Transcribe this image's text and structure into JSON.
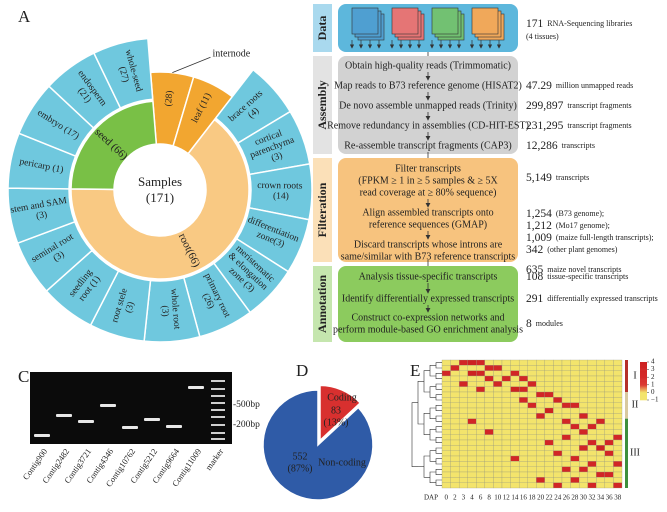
{
  "panel_a": {
    "letter": "A",
    "center_title": "Samples",
    "center_count": "(171)",
    "whole_color": "#f2a630",
    "tissue_color": "#6fc8de",
    "whole": [
      {
        "label": "(28)",
        "callout": "internode"
      },
      {
        "label": "leaf (11)"
      }
    ],
    "groups": [
      {
        "label": "root(66)",
        "color": "#f9c983",
        "tissues": [
          "brace roots (4)",
          "cortical parenchyma (3)",
          "crown roots (14)",
          "differentiation zone(3)",
          "meristematic & elongation zone (3)",
          "primary root (26)",
          "whole root (3)",
          "root stele (3)",
          "seedling root (1)",
          "seminal root (3)",
          "stem and SAM (3)"
        ]
      },
      {
        "label": "seed (66)",
        "color": "#79c046",
        "tissues": [
          "pericarp (1)",
          "embryo (17)",
          "endosperm (21)",
          "whole-seed (27)"
        ]
      }
    ]
  },
  "panel_b": {
    "letter": "B",
    "stages": [
      {
        "name": "Data",
        "color": "#5db7dc",
        "side": "#a9d9ee",
        "steps": [
          {
            "lines": [],
            "results": [
              {
                "number": "171",
                "text": "RNA-Sequencing libraries"
              },
              {
                "text": "(4 tissues)"
              }
            ]
          }
        ]
      },
      {
        "name": "Assembly",
        "color": "#d2d2d2",
        "side": "#e3e3e3",
        "steps": [
          {
            "lines": [
              "Obtain high-quality reads (Trimmomatic)"
            ],
            "results": []
          },
          {
            "lines": [
              "Map reads to B73 reference genome (HISAT2)"
            ],
            "results": [
              {
                "number": "47.29",
                "text": "million unmapped reads"
              }
            ]
          },
          {
            "lines": [
              "De novo assemble unmapped reads (Trinity)"
            ],
            "results": [
              {
                "number": "299,897",
                "text": "transcript fragments"
              }
            ]
          },
          {
            "lines": [
              "Remove redundancy in assemblies (CD-HIT-EST)"
            ],
            "results": [
              {
                "number": "231,295",
                "text": "transcript fragments"
              }
            ]
          },
          {
            "lines": [
              "Re-assemble transcript fragments (CAP3)"
            ],
            "results": [
              {
                "number": "12,286",
                "text": "transcripts"
              }
            ]
          }
        ]
      },
      {
        "name": "Filteration",
        "color": "#f7c37e",
        "side": "#fbe0b8",
        "steps": [
          {
            "lines": [
              "Filter transcripts",
              "(FPKM ≥ 1 in ≥ 5 samples & ≥ 5X",
              "read coverage at ≥ 80% sequence)"
            ],
            "results": [
              {
                "number": "5,149",
                "text": "transcripts"
              }
            ]
          },
          {
            "lines": [
              "Align assembled transcripts onto",
              "reference sequences (GMAP)"
            ],
            "results": [
              {
                "number": "1,254",
                "text": "(B73 genome);"
              },
              {
                "number": "1,212",
                "text": "(Mo17 genome);"
              },
              {
                "number": "1,009",
                "text": "(maize full-length transcripts);"
              },
              {
                "number": "342",
                "text": "(other plant genomes)"
              }
            ]
          },
          {
            "lines": [
              "Discard transcripts whose introns are",
              "same/similar with B73 reference transcripts"
            ],
            "results": [
              {
                "number": "635",
                "text": "maize novel transcripts"
              }
            ]
          }
        ]
      },
      {
        "name": "Annotation",
        "color": "#8ccb5e",
        "side": "#c5e6ae",
        "steps": [
          {
            "lines": [
              "Analysis tissue-specific transcripts"
            ],
            "results": [
              {
                "number": "108",
                "text": "tissue-specific transcripts"
              }
            ]
          },
          {
            "lines": [
              "Identify differentially expressed transcripts"
            ],
            "results": [
              {
                "number": "291",
                "text": "differentially expressed transcripts"
              }
            ]
          },
          {
            "lines": [
              "Construct co-expression networks and",
              "perform module-based GO enrichment analysis"
            ],
            "results": [
              {
                "number": "8",
                "text": "modules"
              }
            ]
          }
        ]
      }
    ]
  },
  "panel_c": {
    "letter": "C",
    "size_labels": [
      "-500bp",
      "-200bp"
    ],
    "lanes": [
      "Contig900",
      "Contig2482",
      "Contig3721",
      "Contig4346",
      "Contig10762",
      "Contig5212",
      "Contig9664",
      "Contig11009",
      "marker"
    ]
  },
  "panel_d": {
    "letter": "D",
    "categories": [
      "Coding",
      "Non-coding"
    ],
    "values": [
      83,
      552
    ],
    "percent_labels": [
      "(13%)",
      "(87%)"
    ],
    "colors": [
      "#d8302f",
      "#2f5ba7"
    ]
  },
  "panel_e": {
    "letter": "E",
    "x_label": "DAP",
    "columns": [
      0,
      2,
      3,
      4,
      6,
      8,
      10,
      12,
      14,
      16,
      18,
      20,
      22,
      24,
      26,
      28,
      30,
      32,
      34,
      36,
      38
    ],
    "groups": [
      {
        "label": "I",
        "color": "#b5302a"
      },
      {
        "label": "II",
        "color": "#d8c9a0"
      },
      {
        "label": "III",
        "color": "#3d8f3d"
      }
    ],
    "clim": [
      -1,
      4
    ],
    "colormap": [
      "#f3e46c",
      "#f3e46c",
      "#dc3c34",
      "#d52a2a",
      "#d12626",
      "#cc2222"
    ],
    "cticks": [
      4,
      3,
      2,
      1,
      0,
      {
        "value": -1,
        "label": "−1"
      }
    ],
    "matrix": [
      [
        -1,
        -1,
        3,
        4,
        3,
        -1,
        -1,
        -1,
        -1,
        -1,
        -1,
        -1,
        -1,
        -1,
        -1,
        -1,
        -1,
        -1,
        -1,
        -1,
        -1
      ],
      [
        -1,
        3,
        -1,
        -1,
        -1,
        3,
        3,
        -1,
        -1,
        -1,
        -1,
        -1,
        -1,
        -1,
        -1,
        -1,
        -1,
        -1,
        -1,
        -1,
        -1
      ],
      [
        3,
        -1,
        -1,
        4,
        3,
        -1,
        -1,
        -1,
        3,
        -1,
        -1,
        -1,
        -1,
        -1,
        -1,
        -1,
        -1,
        -1,
        -1,
        -1,
        -1
      ],
      [
        -1,
        -1,
        -1,
        -1,
        -1,
        3,
        -1,
        3,
        -1,
        3,
        -1,
        -1,
        -1,
        -1,
        -1,
        -1,
        -1,
        -1,
        -1,
        -1,
        -1
      ],
      [
        -1,
        -1,
        3,
        -1,
        -1,
        -1,
        3,
        -1,
        -1,
        -1,
        3,
        -1,
        -1,
        -1,
        -1,
        -1,
        -1,
        -1,
        -1,
        -1,
        -1
      ],
      [
        -1,
        -1,
        -1,
        -1,
        3,
        -1,
        -1,
        -1,
        4,
        3,
        -1,
        -1,
        -1,
        -1,
        -1,
        -1,
        -1,
        -1,
        -1,
        -1,
        -1
      ],
      [
        -1,
        -1,
        -1,
        -1,
        -1,
        -1,
        -1,
        -1,
        -1,
        -1,
        -1,
        3,
        3,
        -1,
        -1,
        -1,
        -1,
        -1,
        -1,
        -1,
        -1
      ],
      [
        -1,
        -1,
        -1,
        -1,
        -1,
        -1,
        -1,
        -1,
        -1,
        3,
        -1,
        -1,
        -1,
        3,
        -1,
        -1,
        -1,
        -1,
        -1,
        -1,
        -1
      ],
      [
        -1,
        -1,
        -1,
        -1,
        -1,
        -1,
        -1,
        -1,
        -1,
        -1,
        3,
        -1,
        -1,
        -1,
        3,
        3,
        -1,
        -1,
        -1,
        -1,
        -1
      ],
      [
        -1,
        -1,
        -1,
        -1,
        -1,
        -1,
        -1,
        -1,
        -1,
        -1,
        -1,
        -1,
        4,
        -1,
        -1,
        -1,
        -1,
        -1,
        -1,
        -1,
        -1
      ],
      [
        -1,
        -1,
        -1,
        -1,
        -1,
        -1,
        -1,
        -1,
        -1,
        -1,
        -1,
        3,
        -1,
        -1,
        -1,
        -1,
        3,
        -1,
        -1,
        -1,
        -1
      ],
      [
        -1,
        -1,
        -1,
        3,
        -1,
        -1,
        -1,
        -1,
        -1,
        -1,
        -1,
        -1,
        -1,
        -1,
        3,
        -1,
        -1,
        -1,
        3,
        -1,
        -1
      ],
      [
        -1,
        -1,
        -1,
        -1,
        -1,
        -1,
        -1,
        -1,
        -1,
        -1,
        -1,
        -1,
        -1,
        -1,
        -1,
        3,
        -1,
        3,
        -1,
        -1,
        -1
      ],
      [
        -1,
        -1,
        -1,
        -1,
        -1,
        3,
        -1,
        -1,
        -1,
        -1,
        -1,
        -1,
        -1,
        -1,
        -1,
        -1,
        3,
        -1,
        -1,
        -1,
        -1
      ],
      [
        -1,
        -1,
        -1,
        -1,
        -1,
        -1,
        -1,
        -1,
        -1,
        -1,
        -1,
        -1,
        -1,
        -1,
        3,
        -1,
        -1,
        -1,
        -1,
        -1,
        3
      ],
      [
        -1,
        -1,
        -1,
        -1,
        -1,
        -1,
        -1,
        -1,
        -1,
        -1,
        -1,
        -1,
        3,
        -1,
        -1,
        -1,
        -1,
        3,
        -1,
        3,
        -1
      ],
      [
        -1,
        -1,
        -1,
        -1,
        -1,
        -1,
        -1,
        -1,
        -1,
        -1,
        -1,
        -1,
        -1,
        -1,
        -1,
        -1,
        3,
        -1,
        4,
        -1,
        -1
      ],
      [
        -1,
        -1,
        -1,
        -1,
        -1,
        -1,
        -1,
        -1,
        -1,
        -1,
        -1,
        -1,
        -1,
        3,
        -1,
        -1,
        -1,
        -1,
        -1,
        3,
        -1
      ],
      [
        -1,
        -1,
        -1,
        -1,
        -1,
        -1,
        -1,
        -1,
        3,
        -1,
        -1,
        -1,
        -1,
        -1,
        -1,
        3,
        -1,
        -1,
        -1,
        -1,
        -1
      ],
      [
        -1,
        -1,
        -1,
        -1,
        -1,
        -1,
        -1,
        -1,
        -1,
        -1,
        -1,
        -1,
        -1,
        -1,
        -1,
        -1,
        -1,
        3,
        -1,
        -1,
        3
      ],
      [
        -1,
        -1,
        -1,
        -1,
        -1,
        -1,
        -1,
        -1,
        -1,
        -1,
        -1,
        -1,
        -1,
        -1,
        3,
        -1,
        3,
        -1,
        -1,
        -1,
        -1
      ],
      [
        -1,
        -1,
        -1,
        -1,
        -1,
        -1,
        -1,
        -1,
        -1,
        -1,
        -1,
        -1,
        -1,
        -1,
        -1,
        -1,
        -1,
        -1,
        3,
        3,
        -1
      ],
      [
        -1,
        -1,
        -1,
        -1,
        -1,
        -1,
        -1,
        -1,
        -1,
        -1,
        -1,
        3,
        -1,
        -1,
        -1,
        3,
        -1,
        -1,
        -1,
        -1,
        -1
      ],
      [
        -1,
        -1,
        -1,
        -1,
        -1,
        -1,
        -1,
        -1,
        -1,
        -1,
        -1,
        -1,
        -1,
        3,
        -1,
        -1,
        -1,
        3,
        -1,
        -1,
        3
      ]
    ]
  }
}
